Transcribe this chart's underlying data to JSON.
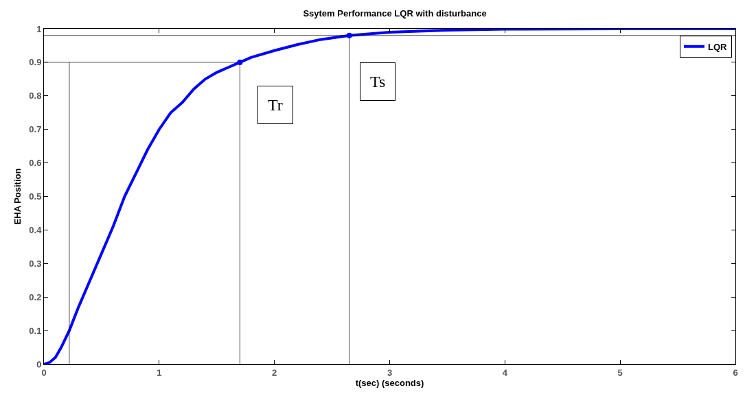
{
  "chart_data": {
    "type": "line",
    "title": "Ssytem Performance LQR with disturbance",
    "xlabel": "t(sec) (seconds)",
    "ylabel": "EHA Position",
    "xlim": [
      0,
      6
    ],
    "xticks": [
      0,
      1,
      2,
      3,
      4,
      5,
      6
    ],
    "ylim": [
      0,
      1
    ],
    "yticks": [
      0,
      0.1,
      0.2,
      0.3,
      0.4,
      0.5,
      0.6,
      0.7,
      0.8,
      0.9,
      1
    ],
    "grid": false,
    "legend": "top right",
    "marker": "none",
    "line_style": "solid",
    "annotations": [
      "Tr",
      "Ts"
    ],
    "series": [
      {
        "name": "LQR",
        "color": "#0000ff",
        "x": [
          0,
          0.05,
          0.1,
          0.15,
          0.22,
          0.3,
          0.4,
          0.5,
          0.6,
          0.7,
          0.8,
          0.9,
          1.0,
          1.1,
          1.2,
          1.3,
          1.4,
          1.5,
          1.6,
          1.7,
          1.8,
          2.0,
          2.2,
          2.4,
          2.65,
          3.0,
          3.5,
          4.0,
          5.0,
          6.0
        ],
        "values": [
          0,
          0.005,
          0.02,
          0.05,
          0.1,
          0.17,
          0.25,
          0.33,
          0.41,
          0.5,
          0.57,
          0.64,
          0.7,
          0.75,
          0.78,
          0.82,
          0.85,
          0.87,
          0.885,
          0.9,
          0.915,
          0.935,
          0.953,
          0.968,
          0.98,
          0.99,
          0.996,
          0.999,
          1,
          1
        ]
      },
      {
        "color": "#000000",
        "x": [
          0.22,
          0.22
        ],
        "values": [
          0,
          0.9
        ]
      },
      {
        "color": "#000000",
        "x": [
          0,
          1.7,
          1.7
        ],
        "values": [
          0.9,
          0.9,
          0
        ]
      },
      {
        "color": "#000000",
        "x": [
          0,
          6
        ],
        "values": [
          0.98,
          0.98
        ]
      },
      {
        "color": "#000000",
        "x": [
          2.65,
          2.65
        ],
        "values": [
          0,
          0.98
        ]
      },
      {
        "type": "scatter",
        "marker": "circle",
        "color": "#0000ff",
        "x": [
          1.7,
          2.65
        ],
        "values": [
          0.9,
          0.98
        ]
      }
    ]
  }
}
